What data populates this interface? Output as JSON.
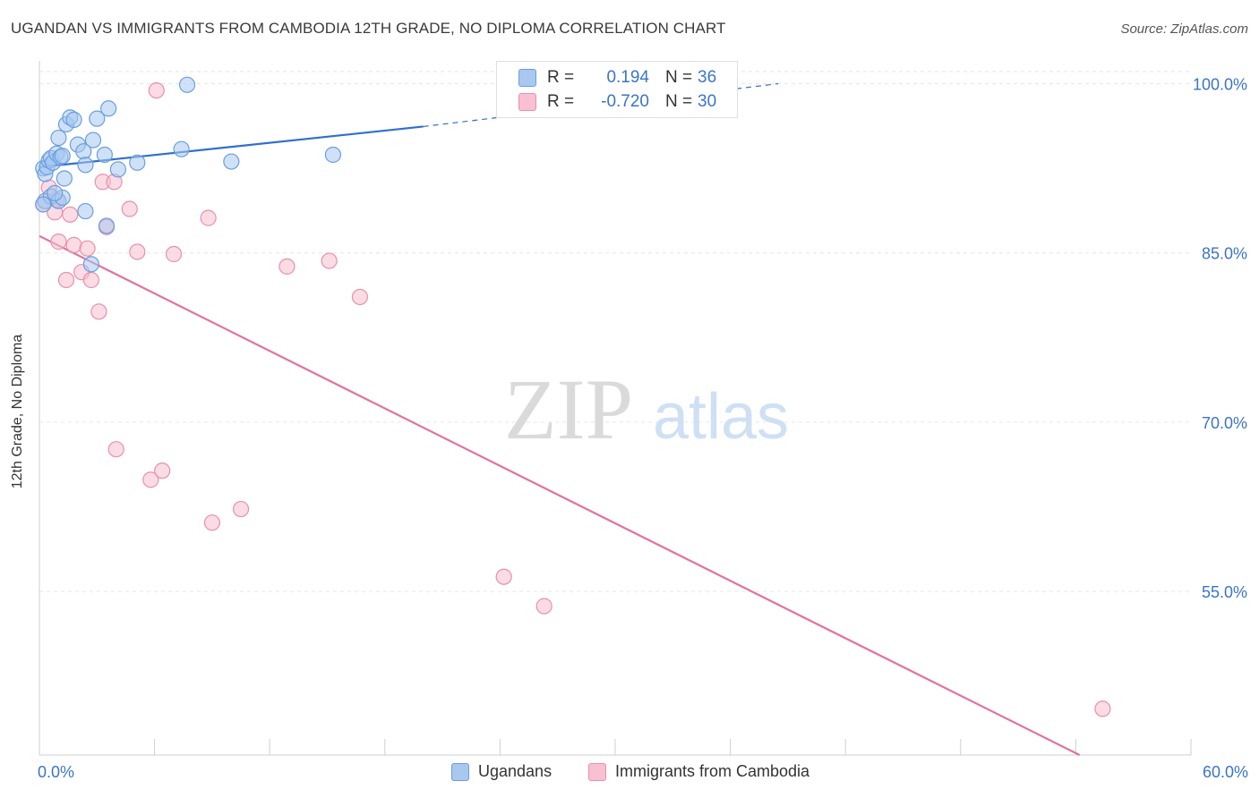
{
  "header": {
    "title": "UGANDAN VS IMMIGRANTS FROM CAMBODIA 12TH GRADE, NO DIPLOMA CORRELATION CHART",
    "source": "Source: ZipAtlas.com"
  },
  "watermark": {
    "zip": "ZIP",
    "atlas": "atlas"
  },
  "legend": {
    "r_label": "R =",
    "n_label": "N =",
    "series": [
      {
        "r": "0.194",
        "n": "36",
        "color": "#a8c8f0",
        "border": "#6a9ede"
      },
      {
        "r": "-0.720",
        "n": "30",
        "color": "#f8c0d0",
        "border": "#e890ac"
      }
    ]
  },
  "chart_data": {
    "type": "scatter",
    "title": "UGANDAN VS IMMIGRANTS FROM CAMBODIA 12TH GRADE, NO DIPLOMA CORRELATION CHART",
    "xlabel": "",
    "ylabel": "12th Grade, No Diploma",
    "xlim": [
      0,
      60
    ],
    "ylim": [
      40.5,
      102.5
    ],
    "x_tick_labels": [
      "0.0%",
      "60.0%"
    ],
    "y_ticks": [
      55,
      70,
      85,
      100
    ],
    "y_tick_labels": [
      "55.0%",
      "70.0%",
      "85.0%",
      "100.0%"
    ],
    "grid": true,
    "legend_position": "top-center",
    "series": [
      {
        "name": "Ugandans",
        "color": "#a8c8f0",
        "stroke": "#6a9ede",
        "trend_color": "#2f6fcc",
        "trend": {
          "x0": 0,
          "y0": 92.6,
          "x1": 20,
          "y1": 96.2,
          "x_dash_end": 38.5,
          "y_dash_end": 100
        },
        "points": [
          [
            0.2,
            92.5
          ],
          [
            0.3,
            92.0
          ],
          [
            0.4,
            92.6
          ],
          [
            0.5,
            93.2
          ],
          [
            0.6,
            93.4
          ],
          [
            0.7,
            93.0
          ],
          [
            0.9,
            93.8
          ],
          [
            1.0,
            95.2
          ],
          [
            1.1,
            93.5
          ],
          [
            1.2,
            93.6
          ],
          [
            1.3,
            91.6
          ],
          [
            1.4,
            96.4
          ],
          [
            1.6,
            97.0
          ],
          [
            1.8,
            96.8
          ],
          [
            2.0,
            94.6
          ],
          [
            2.3,
            94.0
          ],
          [
            2.4,
            92.8
          ],
          [
            2.8,
            95.0
          ],
          [
            3.0,
            96.9
          ],
          [
            3.4,
            93.7
          ],
          [
            3.6,
            97.8
          ],
          [
            4.1,
            92.4
          ],
          [
            5.1,
            93.0
          ],
          [
            7.4,
            94.2
          ],
          [
            7.7,
            99.9
          ],
          [
            10.0,
            93.1
          ],
          [
            15.3,
            93.7
          ],
          [
            0.3,
            89.6
          ],
          [
            0.6,
            90.0
          ],
          [
            1.0,
            89.6
          ],
          [
            1.2,
            89.9
          ],
          [
            2.4,
            88.7
          ],
          [
            3.5,
            87.4
          ],
          [
            2.7,
            84.0
          ],
          [
            0.8,
            90.3
          ],
          [
            0.2,
            89.3
          ]
        ]
      },
      {
        "name": "Immigrants from Cambodia",
        "color": "#f8c0d0",
        "stroke": "#e890ac",
        "trend_color": "#e2729e",
        "trend": {
          "x0": 0,
          "y0": 86.5,
          "x1": 54.2,
          "y1": 40.5
        },
        "points": [
          [
            0.2,
            89.3
          ],
          [
            0.5,
            90.8
          ],
          [
            0.8,
            88.6
          ],
          [
            0.9,
            89.7
          ],
          [
            1.0,
            86.0
          ],
          [
            1.4,
            82.6
          ],
          [
            1.6,
            88.4
          ],
          [
            1.8,
            85.7
          ],
          [
            2.2,
            83.3
          ],
          [
            2.5,
            85.4
          ],
          [
            2.7,
            82.6
          ],
          [
            3.1,
            79.8
          ],
          [
            3.3,
            91.3
          ],
          [
            3.5,
            87.3
          ],
          [
            3.9,
            91.3
          ],
          [
            4.0,
            67.6
          ],
          [
            4.7,
            88.9
          ],
          [
            5.1,
            85.1
          ],
          [
            5.8,
            64.9
          ],
          [
            6.1,
            99.4
          ],
          [
            6.4,
            65.7
          ],
          [
            7.0,
            84.9
          ],
          [
            8.8,
            88.1
          ],
          [
            9.0,
            61.1
          ],
          [
            10.5,
            62.3
          ],
          [
            12.9,
            83.8
          ],
          [
            15.1,
            84.3
          ],
          [
            16.7,
            81.1
          ],
          [
            24.2,
            56.3
          ],
          [
            26.3,
            53.7
          ]
        ],
        "outlier": [
          55.4,
          44.6
        ]
      }
    ]
  }
}
